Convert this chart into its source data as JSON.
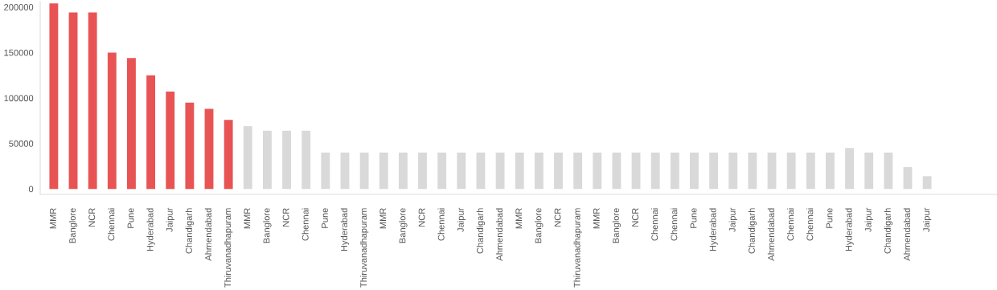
{
  "chart_data": {
    "type": "bar",
    "categories": [
      "MMR",
      "Banglore",
      "NCR",
      "Chennai",
      "Pune",
      "Hyderabad",
      "Jaipur",
      "Chandigarh",
      "Ahmendabad",
      "Thiruvanadhapuram",
      "MMR",
      "Banglore",
      "NCR",
      "Chennai",
      "Pune",
      "Hyderabad",
      "Thiruvanadhapuram",
      "MMR",
      "Banglore",
      "NCR",
      "Chennai",
      "Jaipur",
      "Chandigarh",
      "Ahmendabad",
      "MMR",
      "Banglore",
      "NCR",
      "Thiruvanadhapuram",
      "MMR",
      "Banglore",
      "NCR",
      "Chennai",
      "Chennai",
      "Pune",
      "Hyderabad",
      "Jaipur",
      "Chandigarh",
      "Ahmendabad",
      "Chennai",
      "Chennai",
      "Pune",
      "Hyderabad",
      "Jaipur",
      "Chandigarh",
      "Ahmendabad",
      "Jaipur"
    ],
    "values": [
      204000,
      194000,
      194000,
      150000,
      144000,
      125000,
      107000,
      95000,
      88000,
      76000,
      69000,
      64000,
      64000,
      64000,
      40000,
      40000,
      40000,
      40000,
      40000,
      40000,
      40000,
      40000,
      40000,
      40000,
      40000,
      40000,
      40000,
      40000,
      40000,
      40000,
      40000,
      40000,
      40000,
      40000,
      40000,
      40000,
      40000,
      40000,
      40000,
      40000,
      40000,
      45000,
      40000,
      40000,
      24000,
      14000
    ],
    "colors": [
      "#e85454",
      "#e85454",
      "#e85454",
      "#e85454",
      "#e85454",
      "#e85454",
      "#e85454",
      "#e85454",
      "#e85454",
      "#e85454",
      "#d9d9d9",
      "#d9d9d9",
      "#d9d9d9",
      "#d9d9d9",
      "#d9d9d9",
      "#d9d9d9",
      "#d9d9d9",
      "#d9d9d9",
      "#d9d9d9",
      "#d9d9d9",
      "#d9d9d9",
      "#d9d9d9",
      "#d9d9d9",
      "#d9d9d9",
      "#d9d9d9",
      "#d9d9d9",
      "#d9d9d9",
      "#d9d9d9",
      "#d9d9d9",
      "#d9d9d9",
      "#d9d9d9",
      "#d9d9d9",
      "#d9d9d9",
      "#d9d9d9",
      "#d9d9d9",
      "#d9d9d9",
      "#d9d9d9",
      "#d9d9d9",
      "#d9d9d9",
      "#d9d9d9",
      "#d9d9d9",
      "#d9d9d9",
      "#d9d9d9",
      "#d9d9d9",
      "#d9d9d9",
      "#d9d9d9"
    ],
    "ylim": [
      -6000,
      206000
    ],
    "yticks": [
      0,
      50000,
      100000,
      150000,
      200000
    ],
    "grid": false,
    "legend": false
  }
}
